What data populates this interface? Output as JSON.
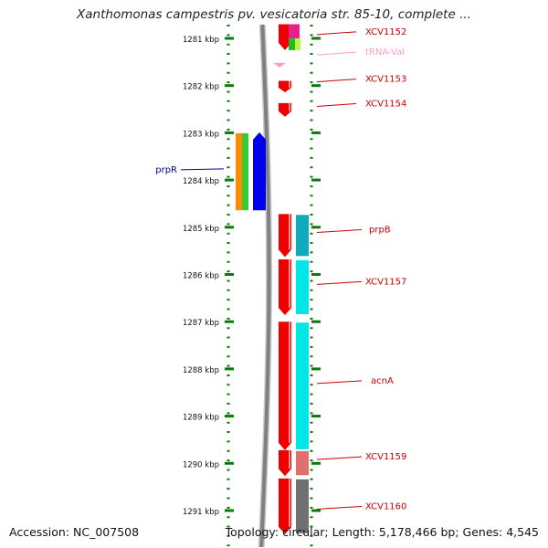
{
  "title": "Xanthomonas campestris pv. vesicatoria str. 85-10, complete ...",
  "footer": {
    "accession": "Accession: NC_007508",
    "topology": "Topology: circular; Length: 5,178,466 bp; Genes: 4,545"
  },
  "scale": {
    "unit": "kbp",
    "ticks": [
      {
        "kbp": 1281,
        "label": "1281 kbp"
      },
      {
        "kbp": 1282,
        "label": "1282 kbp"
      },
      {
        "kbp": 1283,
        "label": "1283 kbp"
      },
      {
        "kbp": 1284,
        "label": "1284 kbp"
      },
      {
        "kbp": 1285,
        "label": "1285 kbp"
      },
      {
        "kbp": 1286,
        "label": "1286 kbp"
      },
      {
        "kbp": 1287,
        "label": "1287 kbp"
      },
      {
        "kbp": 1288,
        "label": "1288 kbp"
      },
      {
        "kbp": 1289,
        "label": "1289 kbp"
      },
      {
        "kbp": 1290,
        "label": "1290 kbp"
      },
      {
        "kbp": 1291,
        "label": "1291 kbp"
      }
    ]
  },
  "colors": {
    "forward_gene": "#ee0000",
    "reverse_gene": "#0000ee",
    "trna": "#f6a0c8",
    "axis": "#808080",
    "tick_ring": "#0a7a0a",
    "label_forward": "#cc0000",
    "label_reverse": "#000099"
  },
  "genes": [
    {
      "name": "XCV1152",
      "start_kbp": 1280.7,
      "end_kbp": 1281.25,
      "strand": "+",
      "label_kbp": 1280.92
    },
    {
      "name": "tRNA-Val",
      "start_kbp": 1281.52,
      "end_kbp": 1281.6,
      "strand": "+",
      "type": "tRNA",
      "label_kbp": 1281.35
    },
    {
      "name": "XCV1153",
      "start_kbp": 1281.9,
      "end_kbp": 1282.14,
      "strand": "+",
      "label_kbp": 1281.92
    },
    {
      "name": "XCV1154",
      "start_kbp": 1282.37,
      "end_kbp": 1282.66,
      "strand": "+",
      "label_kbp": 1282.44
    },
    {
      "name": "prpR",
      "start_kbp": 1282.99,
      "end_kbp": 1284.64,
      "strand": "-",
      "label_kbp": 1283.84
    },
    {
      "name": "prpB",
      "start_kbp": 1284.72,
      "end_kbp": 1285.63,
      "strand": "+",
      "label_kbp": 1285.11
    },
    {
      "name": "XCV1157",
      "start_kbp": 1285.68,
      "end_kbp": 1286.86,
      "strand": "+",
      "label_kbp": 1286.21
    },
    {
      "name": "acnA",
      "start_kbp": 1287.0,
      "end_kbp": 1289.72,
      "strand": "+",
      "label_kbp": 1288.31
    },
    {
      "name": "XCV1159",
      "start_kbp": 1289.72,
      "end_kbp": 1290.27,
      "strand": "+",
      "label_kbp": 1289.92
    },
    {
      "name": "XCV1160",
      "start_kbp": 1290.32,
      "end_kbp": 1291.5,
      "strand": "+",
      "label_kbp": 1290.97
    }
  ]
}
